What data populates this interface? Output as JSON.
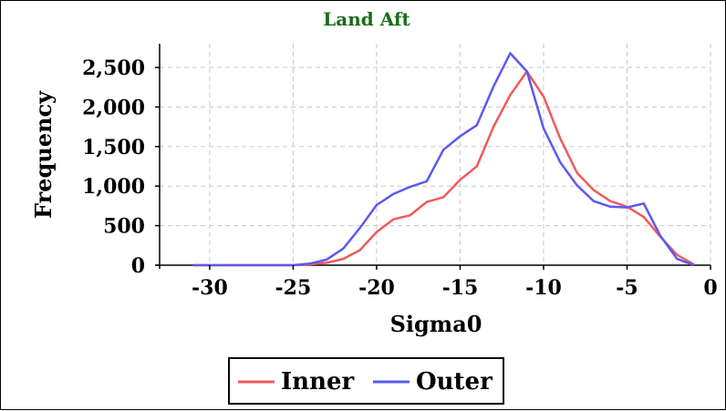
{
  "chart_data": {
    "type": "line",
    "title": "Land Aft",
    "xlabel": "Sigma0",
    "ylabel": "Frequency",
    "xlim": [
      -33,
      0
    ],
    "ylim": [
      0,
      2800
    ],
    "xticks": [
      -30,
      -25,
      -20,
      -15,
      -10,
      -5,
      0
    ],
    "xtick_labels": [
      "-30",
      "-25",
      "-20",
      "-15",
      "-10",
      "-5",
      "0"
    ],
    "yticks": [
      0,
      500,
      1000,
      1500,
      2000,
      2500
    ],
    "ytick_labels": [
      "0",
      "500",
      "1,000",
      "1,500",
      "2,000",
      "2,500"
    ],
    "grid": true,
    "legend_position": "bottom",
    "series": [
      {
        "name": "Inner",
        "color": "#f05a5a",
        "x": [
          -31,
          -30,
          -29,
          -28,
          -27,
          -26,
          -25,
          -24,
          -23,
          -22,
          -21,
          -20,
          -19,
          -18,
          -17,
          -16,
          -15,
          -14,
          -13,
          -12,
          -11,
          -10,
          -9,
          -8,
          -7,
          -6,
          -5,
          -4,
          -3,
          -2,
          -1
        ],
        "y": [
          0,
          0,
          0,
          0,
          0,
          0,
          0,
          10,
          30,
          80,
          190,
          420,
          580,
          630,
          800,
          860,
          1080,
          1250,
          1750,
          2150,
          2450,
          2130,
          1600,
          1170,
          950,
          810,
          740,
          610,
          360,
          130,
          10
        ]
      },
      {
        "name": "Outer",
        "color": "#5a5af0",
        "x": [
          -31,
          -30,
          -29,
          -28,
          -27,
          -26,
          -25,
          -24,
          -23,
          -22,
          -21,
          -20,
          -19,
          -18,
          -17,
          -16,
          -15,
          -14,
          -13,
          -12,
          -11,
          -10,
          -9,
          -8,
          -7,
          -6,
          -5,
          -4,
          -3,
          -2,
          -1
        ],
        "y": [
          0,
          0,
          0,
          0,
          0,
          0,
          0,
          20,
          70,
          210,
          470,
          760,
          900,
          990,
          1060,
          1460,
          1630,
          1770,
          2260,
          2680,
          2450,
          1730,
          1300,
          1010,
          810,
          740,
          730,
          780,
          370,
          80,
          0
        ]
      }
    ]
  }
}
